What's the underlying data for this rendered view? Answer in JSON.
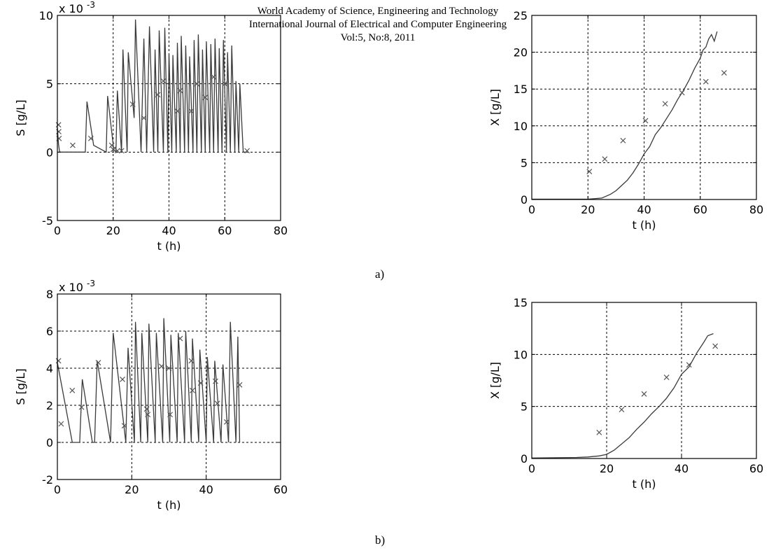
{
  "header": {
    "line1": "World Academy of Science, Engineering and Technology",
    "line2": "International Journal of Electrical and Computer Engineering",
    "line3": "Vol:5, No:8, 2011"
  },
  "captions": {
    "a": "a)",
    "b": "b)"
  },
  "chart_data": [
    {
      "id": "a-left",
      "type": "line",
      "xlabel": "t (h)",
      "ylabel": "S [g/L]",
      "exponent_label": "x 10",
      "exponent_power": "-3",
      "xlim": [
        0,
        80
      ],
      "ylim": [
        -5,
        10
      ],
      "xticks": [
        0,
        20,
        40,
        60,
        80
      ],
      "yticks": [
        -5,
        0,
        5,
        10
      ],
      "grid": true,
      "series": [
        {
          "style": "line",
          "x": [
            0,
            0.4,
            0.8,
            1.2,
            1.6,
            10,
            10.6,
            13,
            17.5,
            18,
            20.2,
            21,
            21.5,
            23,
            23.5,
            25,
            25.4,
            27.5,
            28,
            30,
            31,
            32,
            33,
            34.5,
            35,
            36,
            36.5,
            38,
            38.5,
            39.6,
            40,
            41,
            41.4,
            42.6,
            43,
            44,
            44.4,
            45.6,
            46,
            47,
            47.4,
            48.6,
            49,
            50,
            50.5,
            51.6,
            52,
            53,
            53.4,
            54.6,
            55,
            56,
            56.5,
            57.6,
            58,
            59,
            59.5,
            60.6,
            61,
            62,
            62.5,
            63.6,
            64,
            65,
            65.4,
            66.6,
            67,
            68
          ],
          "y": [
            1.8,
            0.6,
            0,
            0,
            0,
            0,
            3.7,
            0.5,
            0,
            4.1,
            0.2,
            0,
            4.5,
            0,
            7.5,
            0,
            7.3,
            2.5,
            9.7,
            0,
            8.3,
            0,
            9.2,
            0,
            7.5,
            0,
            8.9,
            0,
            9.1,
            0,
            7.2,
            0,
            7.1,
            0,
            8.0,
            0,
            8.5,
            0,
            7.8,
            0,
            7.0,
            0,
            8.2,
            0,
            8.6,
            0,
            7.5,
            0,
            8.1,
            0,
            7.9,
            0,
            8.3,
            0,
            7.6,
            0,
            8.2,
            0,
            7.3,
            0,
            7.8,
            0,
            5.2,
            0,
            5.0,
            0,
            0,
            0
          ]
        },
        {
          "style": "markers",
          "x": [
            0.4,
            0.5,
            0.6,
            5.5,
            12,
            19.5,
            20,
            21.5,
            23,
            27,
            31,
            36,
            38,
            43,
            44,
            48,
            50,
            53,
            56,
            60,
            68
          ],
          "y": [
            2.0,
            1.5,
            1.0,
            0.5,
            1.0,
            0.5,
            0.2,
            0.1,
            0.1,
            3.5,
            2.5,
            4.2,
            5.2,
            3.0,
            4.5,
            3.0,
            5.0,
            4.0,
            5.5,
            5.0,
            0.1
          ]
        }
      ]
    },
    {
      "id": "a-right",
      "type": "line",
      "xlabel": "t (h)",
      "ylabel": "X [g/L]",
      "xlim": [
        0,
        80
      ],
      "ylim": [
        0,
        25
      ],
      "xticks": [
        0,
        20,
        40,
        60,
        80
      ],
      "yticks": [
        0,
        5,
        10,
        15,
        20,
        25
      ],
      "grid": true,
      "series": [
        {
          "style": "line",
          "x": [
            0,
            20,
            25,
            28,
            30,
            32,
            34,
            36,
            38,
            40,
            42,
            44,
            46,
            48,
            50,
            52,
            54,
            56,
            58,
            60,
            61,
            62,
            63,
            64,
            65,
            66
          ],
          "y": [
            0.05,
            0.05,
            0.2,
            0.7,
            1.2,
            1.9,
            2.6,
            3.6,
            4.8,
            6.2,
            7.2,
            8.8,
            9.8,
            11.0,
            12.2,
            13.6,
            14.8,
            16.2,
            17.8,
            19.2,
            20.3,
            20.7,
            21.8,
            22.4,
            21.5,
            22.8
          ]
        },
        {
          "style": "markers",
          "x": [
            20.5,
            26,
            32.5,
            40.5,
            47.5,
            53.5,
            62,
            68.5
          ],
          "y": [
            3.8,
            5.5,
            8.0,
            10.7,
            13.0,
            14.5,
            16.0,
            17.2
          ]
        }
      ]
    },
    {
      "id": "b-left",
      "type": "line",
      "xlabel": "t (h)",
      "ylabel": "S [g/L]",
      "exponent_label": "x 10",
      "exponent_power": "-3",
      "xlim": [
        0,
        60
      ],
      "ylim": [
        -2,
        8
      ],
      "xticks": [
        0,
        20,
        40,
        60
      ],
      "yticks": [
        -2,
        0,
        2,
        4,
        6,
        8
      ],
      "grid": true,
      "series": [
        {
          "style": "line",
          "x": [
            0,
            4,
            5,
            6,
            6.7,
            9.4,
            10,
            10.7,
            14.3,
            15,
            18.4,
            19,
            20.7,
            21,
            22.4,
            22.7,
            24.3,
            24.6,
            26.3,
            26.6,
            28.3,
            28.6,
            30.2,
            30.5,
            32.2,
            32.5,
            34.2,
            34.5,
            36,
            36.3,
            38,
            38.3,
            40,
            40.3,
            42,
            42.3,
            44,
            44.5,
            46,
            46.5,
            48,
            48.5,
            49
          ],
          "y": [
            4.3,
            0,
            0,
            0,
            3.4,
            0,
            0,
            4.4,
            0,
            5.9,
            0,
            5.1,
            0,
            6.5,
            0,
            5.9,
            0,
            6.4,
            0,
            5.9,
            0,
            6.7,
            0,
            5.8,
            0,
            5.9,
            0,
            6.0,
            0,
            5.6,
            0,
            5.0,
            0,
            4.6,
            0,
            4.4,
            0,
            4.2,
            0,
            6.5,
            0,
            5.7,
            0
          ]
        },
        {
          "style": "markers",
          "x": [
            0.3,
            1,
            4,
            6.5,
            11,
            17.5,
            18,
            24,
            24.3,
            28,
            30,
            30.3,
            33,
            36,
            36.3,
            38.5,
            42.5,
            43,
            45.5,
            49
          ],
          "y": [
            4.4,
            1.0,
            2.8,
            1.9,
            4.3,
            3.4,
            0.9,
            1.8,
            1.5,
            4.1,
            4.0,
            1.5,
            5.6,
            4.4,
            2.8,
            3.2,
            3.3,
            2.1,
            1.1,
            3.1
          ]
        }
      ]
    },
    {
      "id": "b-right",
      "type": "line",
      "xlabel": "t (h)",
      "ylabel": "X [g/L]",
      "xlim": [
        0,
        60
      ],
      "ylim": [
        0,
        15
      ],
      "xticks": [
        0,
        20,
        40,
        60
      ],
      "yticks": [
        0,
        5,
        10,
        15
      ],
      "grid": true,
      "series": [
        {
          "style": "line",
          "x": [
            0,
            12,
            15,
            18,
            20,
            22,
            24,
            26,
            28,
            30,
            32,
            34,
            36,
            38,
            40,
            42,
            44,
            46,
            47,
            48.5
          ],
          "y": [
            0.05,
            0.1,
            0.15,
            0.25,
            0.4,
            0.8,
            1.4,
            2.0,
            2.8,
            3.5,
            4.3,
            5.0,
            5.8,
            6.8,
            8.1,
            8.8,
            10.1,
            11.2,
            11.8,
            12.0
          ]
        },
        {
          "style": "markers",
          "x": [
            18,
            24,
            30,
            36,
            42,
            49
          ],
          "y": [
            2.5,
            4.7,
            6.2,
            7.8,
            9.0,
            10.8
          ]
        }
      ]
    }
  ]
}
